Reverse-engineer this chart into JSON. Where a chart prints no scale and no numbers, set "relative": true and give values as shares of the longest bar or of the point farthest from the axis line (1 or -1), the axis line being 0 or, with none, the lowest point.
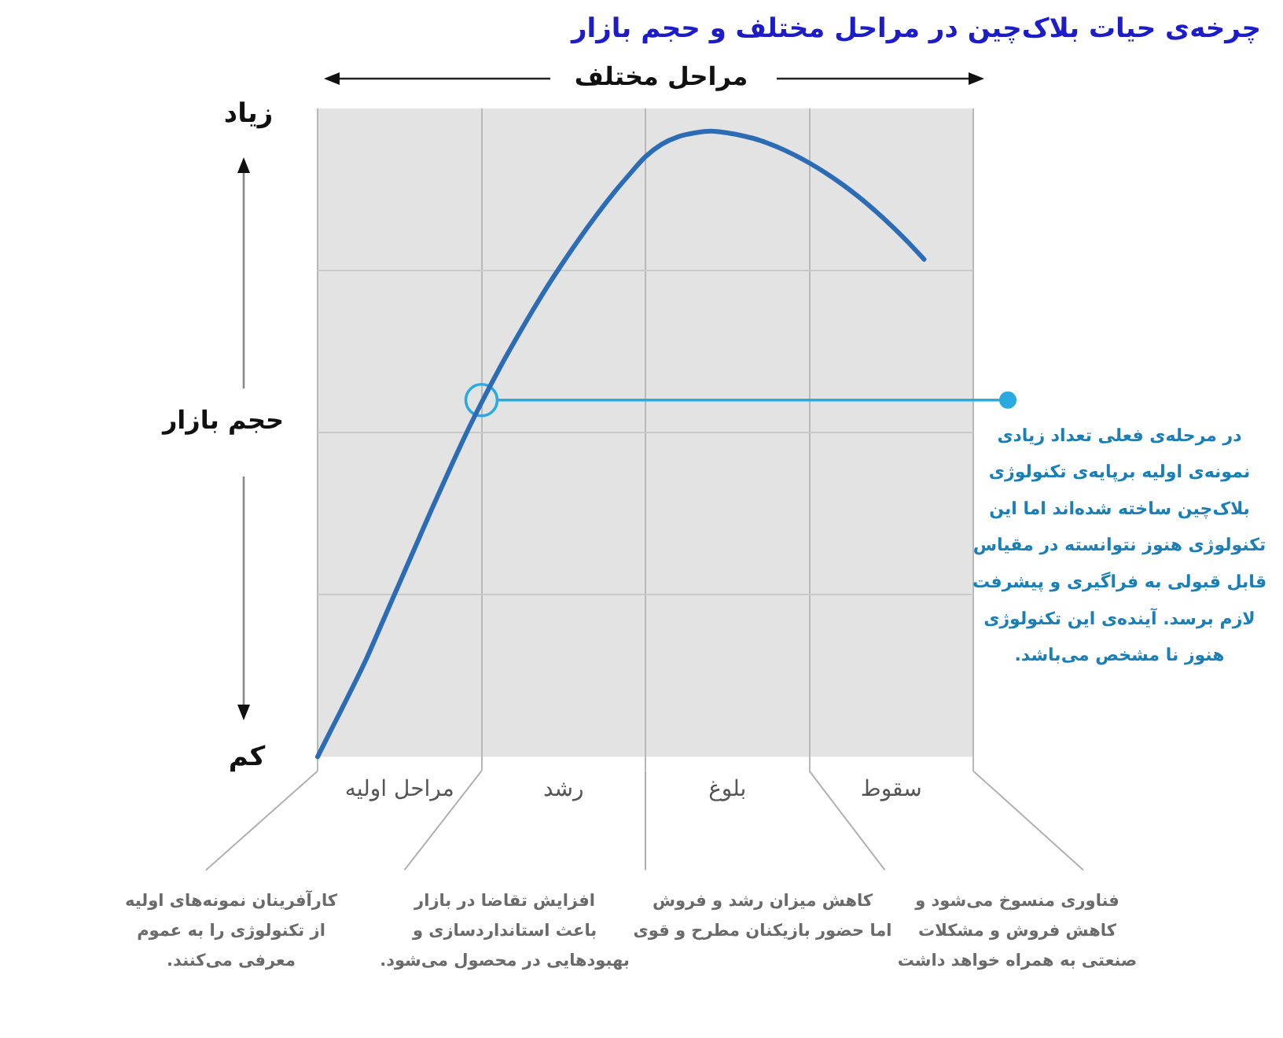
{
  "chart_data": {
    "type": "line",
    "title": "چرخه‌ی حیات بلاک‌چین در مراحل مختلف و حجم بازار",
    "xlabel": "مراحل مختلف",
    "ylabel": "حجم بازار",
    "relative": true,
    "categories": [
      null,
      null,
      null,
      null,
      null,
      "مراحل اولیه",
      null,
      null,
      null,
      null,
      null,
      null,
      null,
      null,
      null,
      "رشد",
      null,
      null,
      null,
      null,
      null,
      null,
      null,
      null,
      null,
      "بلوغ",
      null,
      null,
      null,
      null,
      null,
      null,
      null,
      null,
      null,
      "سقوط",
      null,
      null,
      null,
      null,
      null
    ],
    "series": [
      {
        "color": "#2b6cb5",
        "values": [
          0,
          0.052,
          0.104,
          0.158,
          0.218,
          0.278,
          0.338,
          0.398,
          0.456,
          0.513,
          0.566,
          0.616,
          0.663,
          0.708,
          0.751,
          0.791,
          0.829,
          0.865,
          0.899,
          0.93,
          0.959,
          0.979,
          0.991,
          0.997,
          1,
          0.997,
          0.992,
          0.985,
          0.975,
          0.963,
          0.949,
          0.933,
          0.915,
          0.895,
          0.873,
          0.849,
          0.823,
          0.795,
          null,
          null,
          null
        ]
      },
      {
        "type": "scatter",
        "marker": "circle",
        "color": "#29abe2",
        "values": [
          null,
          null,
          null,
          null,
          null,
          null,
          null,
          null,
          null,
          null,
          0.57,
          null,
          null,
          null,
          null,
          null,
          null,
          null,
          null,
          null,
          null,
          null,
          null,
          null,
          null,
          null,
          null,
          null,
          null,
          null,
          null,
          null,
          null,
          null,
          null,
          null,
          null,
          null,
          null,
          null,
          null
        ]
      }
    ],
    "ref_lines": [
      {
        "axis": "y",
        "value": 0.57,
        "color": "#29abe2",
        "label": "در مرحله‌ی فعلی تعداد زیادی\nنمونه‌ی اولیه برپایه‌ی تکنولوژی\nبلاک‌چین ساخته شده‌اند اما این\nتکنولوژی هنوز نتوانسته در مقیاس\nقابل قبولی به فراگیری و پیشرفت\nلازم برسد. آینده‌ی این تکنولوژی\nهنوز نا مشخص می‌باشد."
      }
    ],
    "grid": true,
    "marker": "none",
    "tick_labels": "x",
    "annotations": [
      "کارآفرینان نمونه‌های اولیه\nاز تکنولوژی را به عموم\nمعرفی می‌کنند.",
      "افزایش تقاضا در بازار\nباعث استانداردسازی و\nبهبودهایی در محصول می‌شود.",
      "کاهش میزان رشد و فروش\nاما حضور بازیکنان مطرح و قوی",
      "فناوری منسوخ می‌شود و\nکاهش فروش و مشکلات\nصنعتی به همراه خواهد داشت",
      "زیاد",
      "کم"
    ]
  }
}
